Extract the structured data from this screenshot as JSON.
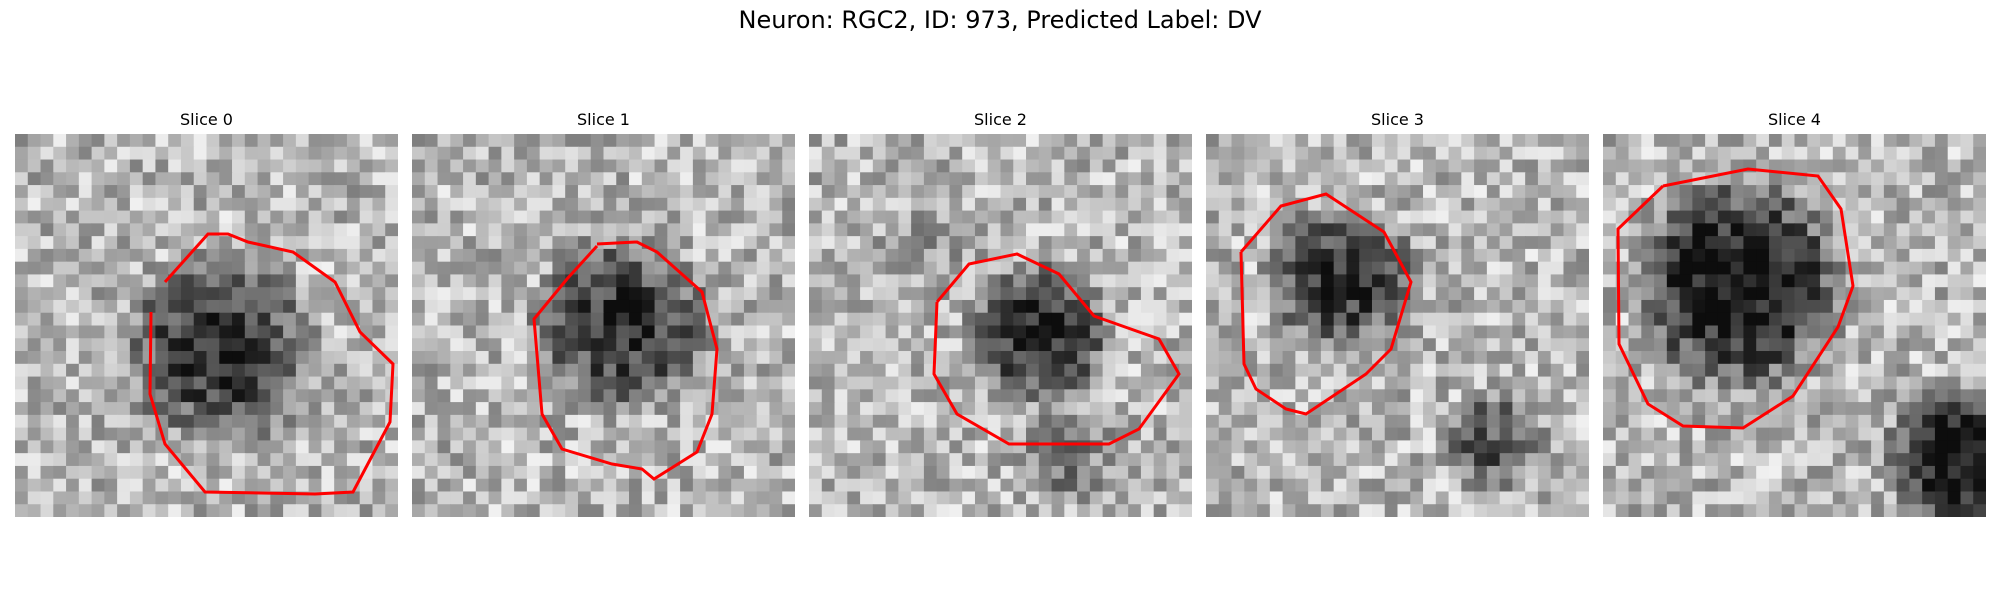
{
  "figure": {
    "title": "Neuron: RGC2, ID: 973, Predicted Label: DV"
  },
  "colors": {
    "contour": "#ff0000",
    "colormap": "gray"
  },
  "panels": [
    {
      "title": "Slice 0"
    },
    {
      "title": "Slice 1"
    },
    {
      "title": "Slice 2"
    },
    {
      "title": "Slice 3"
    },
    {
      "title": "Slice 4"
    }
  ]
}
